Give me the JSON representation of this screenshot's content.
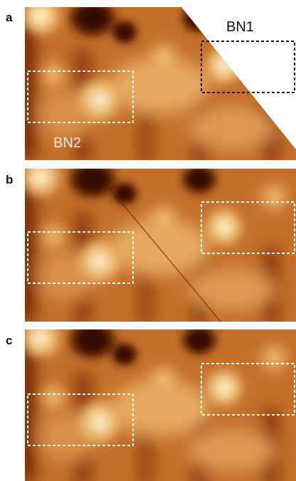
{
  "panels": [
    {
      "label": "a",
      "annotations": [
        "BN1",
        "BN2"
      ]
    },
    {
      "label": "b"
    },
    {
      "label": "c"
    }
  ]
}
